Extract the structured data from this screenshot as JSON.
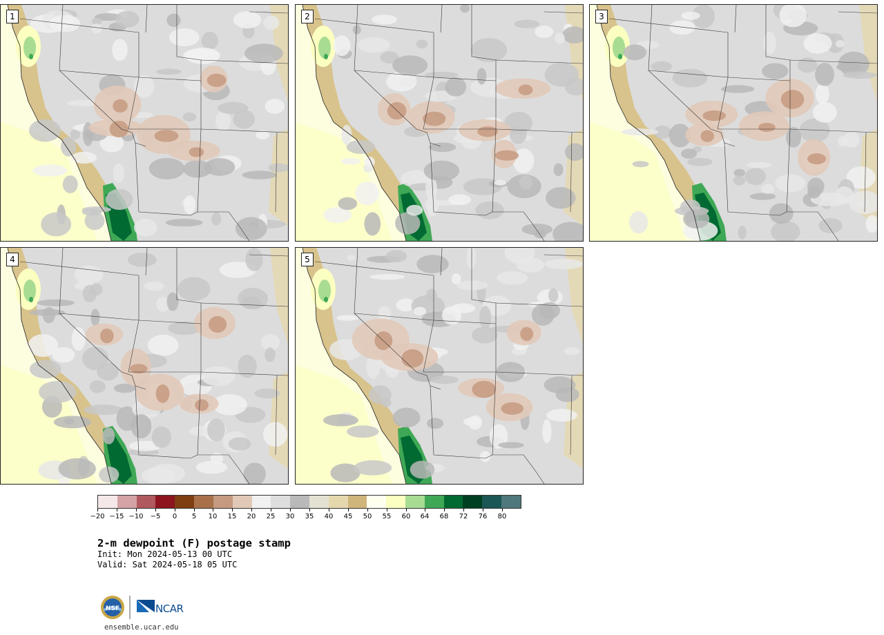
{
  "panels": [
    {
      "label": "1",
      "variant": 0
    },
    {
      "label": "2",
      "variant": 1
    },
    {
      "label": "3",
      "variant": 2
    },
    {
      "label": "4",
      "variant": 3
    },
    {
      "label": "5",
      "variant": 4
    }
  ],
  "colorbar": {
    "colors": [
      "#f5e8e8",
      "#d4a3a6",
      "#b0595f",
      "#8c1520",
      "#7f3f12",
      "#a8714a",
      "#c59a80",
      "#e1c9b8",
      "#f1f1f1",
      "#dedede",
      "#b9b9b9",
      "#e3e1d1",
      "#e6d8ae",
      "#cfb57b",
      "#fffff0",
      "#fbffc0",
      "#a8dc93",
      "#3fa856",
      "#006a32",
      "#013f22",
      "#1a5755",
      "#4e787b"
    ],
    "ticks": [
      "−20",
      "−15",
      "−10",
      "−5",
      "0",
      "5",
      "10",
      "15",
      "20",
      "25",
      "30",
      "35",
      "40",
      "45",
      "50",
      "55",
      "60",
      "64",
      "68",
      "72",
      "76",
      "80"
    ]
  },
  "title": "2-m dewpoint (F) postage stamp",
  "init": " Init: Mon 2024-05-13 00 UTC",
  "valid": "Valid: Sat 2024-05-18 05 UTC",
  "logos": {
    "nsf": "NSF",
    "ncar": "NCAR"
  },
  "website": "ensemble.ucar.edu"
}
